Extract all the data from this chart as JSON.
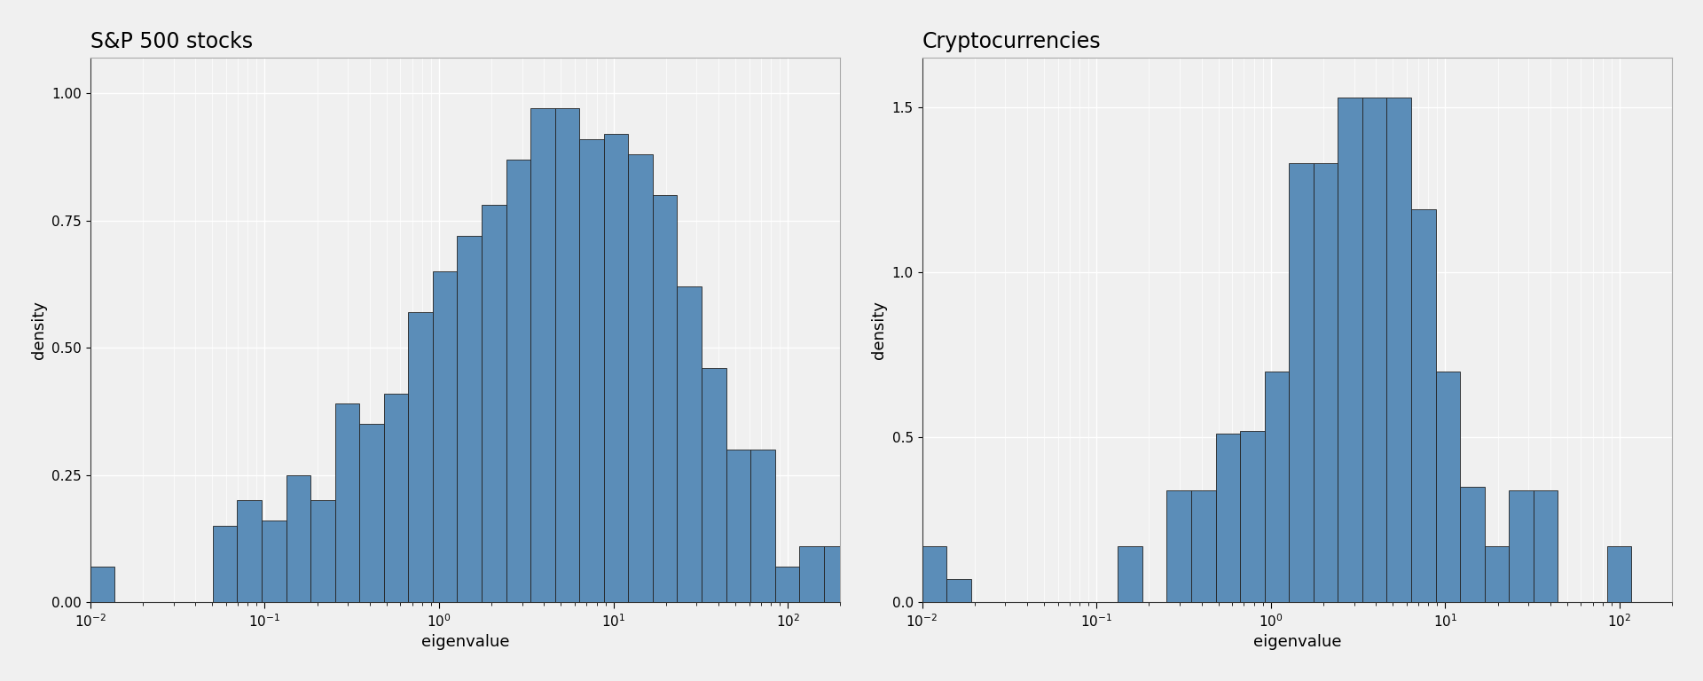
{
  "title1": "S&P 500 stocks",
  "title2": "Cryptocurrencies",
  "xlabel": "eigenvalue",
  "ylabel": "density",
  "bar_color": "#5b8db8",
  "bar_edgecolor": "#222222",
  "bg_color": "#f0f0f0",
  "grid_color": "#ffffff",
  "xlim": [
    0.01,
    200
  ],
  "stocks_ylim": [
    0,
    1.07
  ],
  "crypto_ylim": [
    0,
    1.65
  ],
  "title_fontsize": 17,
  "label_fontsize": 13,
  "tick_fontsize": 11,
  "stocks_bin_edges": [
    0.01,
    0.0138,
    0.0191,
    0.0264,
    0.0365,
    0.0504,
    0.0696,
    0.0961,
    0.1327,
    0.1832,
    0.253,
    0.3493,
    0.4824,
    0.6661,
    0.9198,
    1.2698,
    1.7535,
    2.4212,
    3.3435,
    4.617,
    6.3766,
    8.8038,
    12.158,
    16.79,
    23.183,
    32.013,
    44.206,
    61.054,
    84.334,
    116.47,
    160.84,
    200.0
  ],
  "stocks_heights": [
    0.07,
    0.0,
    0.0,
    0.0,
    0.0,
    0.15,
    0.2,
    0.16,
    0.25,
    0.2,
    0.39,
    0.35,
    0.41,
    0.57,
    0.65,
    0.72,
    0.78,
    0.87,
    0.97,
    0.97,
    0.91,
    0.92,
    0.88,
    0.8,
    0.62,
    0.46,
    0.3,
    0.3,
    0.07,
    0.11,
    0.11,
    0.0
  ],
  "crypto_bin_edges": [
    0.01,
    0.0138,
    0.0191,
    0.0264,
    0.0365,
    0.0504,
    0.0696,
    0.0961,
    0.1327,
    0.1832,
    0.253,
    0.3493,
    0.4824,
    0.6661,
    0.9198,
    1.2698,
    1.7535,
    2.4212,
    3.3435,
    4.617,
    6.3766,
    8.8038,
    12.158,
    16.79,
    23.183,
    32.013,
    44.206,
    61.054,
    84.334,
    116.47
  ],
  "crypto_heights": [
    0.17,
    0.07,
    0.0,
    0.0,
    0.0,
    0.0,
    0.0,
    0.0,
    0.17,
    0.0,
    0.34,
    0.34,
    0.51,
    0.52,
    0.7,
    1.33,
    1.33,
    1.53,
    1.53,
    1.53,
    1.19,
    0.7,
    0.35,
    0.17,
    0.34,
    0.34,
    0.0,
    0.0,
    0.17,
    0.0
  ]
}
